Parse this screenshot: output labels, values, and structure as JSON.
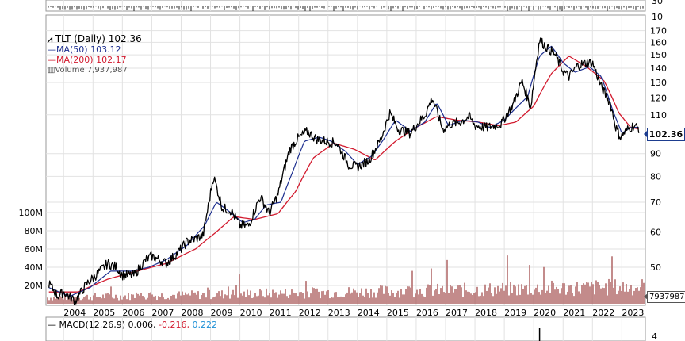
{
  "legend": {
    "ticker": "TLT (Daily) 102.36",
    "ma50": "MA(50) 103.12",
    "ma200": "MA(200) 102.17",
    "volume": "Volume 7,937,987"
  },
  "macd": {
    "label": "MACD(12,26,9)",
    "v1": "0.006,",
    "v2": "-0.216,",
    "v3": "0.222"
  },
  "tags": {
    "price": "102.36",
    "volume": "7937987"
  },
  "colors": {
    "price": "#000000",
    "ma50": "#1d2f8f",
    "ma200": "#d21a2e",
    "volume": "#b46e6e",
    "grid": "#e2e2e2",
    "macd_signal": "#d21a2e",
    "macd_hist": "#1e90d6"
  },
  "chart_data": {
    "type": "line",
    "title": "TLT (Daily) 102.36",
    "x_axis": {
      "type": "date",
      "tick_labels": [
        "2004",
        "2005",
        "2006",
        "2007",
        "2008",
        "2009",
        "2010",
        "2011",
        "2012",
        "2013",
        "2014",
        "2015",
        "2016",
        "2017",
        "2018",
        "2019",
        "2020",
        "2021",
        "2022",
        "2023"
      ]
    },
    "y_axis": {
      "scale": "log",
      "range": [
        42,
        175
      ],
      "tick_labels": [
        "50",
        "60",
        "70",
        "80",
        "90",
        "110",
        "120",
        "130",
        "140",
        "150",
        "160",
        "170"
      ]
    },
    "volume_axis": {
      "range": [
        0,
        120000000
      ],
      "tick_labels": [
        "20M",
        "40M",
        "60M",
        "80M",
        "100M"
      ]
    },
    "top_panel_ticks": [
      "30",
      "10"
    ],
    "macd_panel_ticks": [
      "4"
    ],
    "grid": true,
    "series": [
      {
        "name": "TLT (Daily)",
        "x": [
          2003.5,
          2003.8,
          2004.0,
          2004.4,
          2004.8,
          2005.1,
          2005.5,
          2005.8,
          2006.0,
          2006.4,
          2006.8,
          2007.0,
          2007.5,
          2007.9,
          2008.2,
          2008.5,
          2008.75,
          2008.95,
          2009.1,
          2009.4,
          2009.7,
          2010.0,
          2010.3,
          2010.7,
          2011.0,
          2011.3,
          2011.7,
          2011.95,
          2012.3,
          2012.6,
          2012.9,
          2013.3,
          2013.7,
          2014.0,
          2014.4,
          2014.8,
          2015.1,
          2015.4,
          2015.8,
          2016.0,
          2016.3,
          2016.55,
          2016.9,
          2017.2,
          2017.5,
          2017.8,
          2018.0,
          2018.4,
          2018.9,
          2019.0,
          2019.3,
          2019.6,
          2019.9,
          2020.0,
          2020.2,
          2020.4,
          2020.7,
          2021.0,
          2021.2,
          2021.5,
          2021.8,
          2022.0,
          2022.3,
          2022.6,
          2022.8,
          2022.95,
          2023.2,
          2023.4,
          2023.6
        ],
        "y": [
          46,
          43,
          44,
          42,
          46,
          48,
          51,
          50,
          48,
          48,
          52,
          53,
          51,
          54,
          57,
          58,
          59,
          70,
          80,
          68,
          67,
          62,
          62,
          72,
          66,
          73,
          92,
          97,
          101,
          97,
          96,
          95,
          85,
          84,
          87,
          97,
          111,
          102,
          100,
          104,
          110,
          120,
          102,
          105,
          106,
          109,
          104,
          103,
          105,
          108,
          116,
          131,
          114,
          130,
          162,
          157,
          151,
          138,
          134,
          142,
          144,
          144,
          127,
          117,
          103,
          98,
          102,
          104,
          102.36
        ]
      },
      {
        "name": "MA(50)",
        "x": [
          2003.5,
          2004.2,
          2004.9,
          2005.6,
          2006.3,
          2006.9,
          2007.5,
          2008.2,
          2008.8,
          2009.2,
          2009.6,
          2010.1,
          2010.5,
          2010.9,
          2011.4,
          2011.8,
          2012.2,
          2012.7,
          2013.1,
          2013.6,
          2014.0,
          2014.5,
          2014.9,
          2015.3,
          2015.8,
          2016.3,
          2016.7,
          2017.1,
          2017.6,
          2018.1,
          2018.5,
          2019.0,
          2019.4,
          2019.8,
          2020.2,
          2020.6,
          2021.0,
          2021.4,
          2021.9,
          2022.3,
          2022.7,
          2023.0,
          2023.3,
          2023.6
        ],
        "y": [
          45,
          43,
          45,
          49,
          49,
          50,
          52,
          56,
          62,
          70,
          67,
          63,
          64,
          69,
          70,
          82,
          96,
          98,
          96,
          91,
          85,
          89,
          97,
          107,
          101,
          106,
          117,
          104,
          107,
          106,
          103,
          107,
          114,
          121,
          149,
          157,
          144,
          137,
          141,
          134,
          112,
          100,
          103,
          103.12
        ]
      },
      {
        "name": "MA(200)",
        "x": [
          2003.5,
          2004.5,
          2005.5,
          2006.5,
          2007.5,
          2008.5,
          2009.2,
          2009.8,
          2010.5,
          2011.3,
          2011.9,
          2012.5,
          2013.2,
          2013.9,
          2014.6,
          2015.3,
          2016.0,
          2016.7,
          2017.4,
          2018.1,
          2018.8,
          2019.4,
          2020.0,
          2020.6,
          2021.2,
          2021.8,
          2022.4,
          2022.9,
          2023.3,
          2023.6
        ],
        "y": [
          44,
          44,
          47,
          49,
          51,
          55,
          60,
          65,
          64,
          66,
          74,
          88,
          95,
          92,
          87,
          96,
          103,
          109,
          107,
          106,
          104,
          106,
          115,
          136,
          149,
          141,
          131,
          111,
          103,
          102.17
        ]
      }
    ]
  }
}
